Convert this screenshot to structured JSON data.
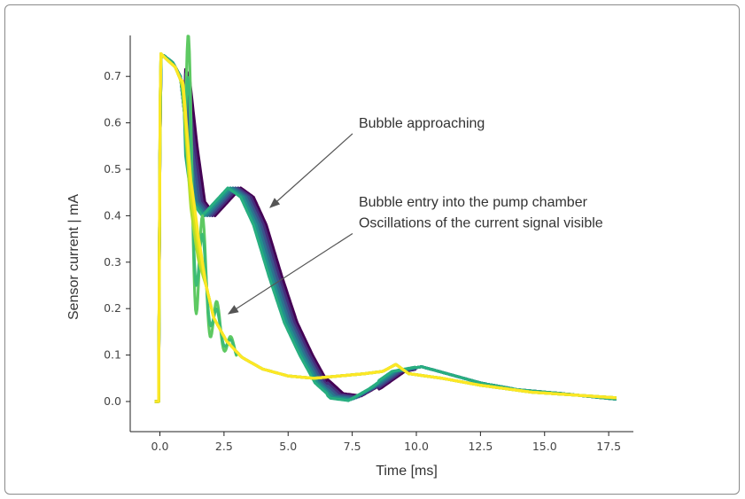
{
  "chart_data": {
    "type": "line",
    "xlabel": "Time [ms]",
    "ylabel": "Sensor current | mA",
    "xlim": [
      -1.6,
      18.6
    ],
    "ylim": [
      -0.06,
      0.82
    ],
    "xticks": [
      "0.0",
      "2.5",
      "5.0",
      "7.5",
      "10.0",
      "12.5",
      "15.0",
      "17.5"
    ],
    "yticks": [
      "0.0",
      "0.1",
      "0.2",
      "0.3",
      "0.4",
      "0.5",
      "0.6",
      "0.7"
    ],
    "annotations": [
      {
        "text": "Bubble approaching",
        "x": 4.3,
        "y": 0.59,
        "arrow_to": [
          4.3,
          0.41
        ]
      },
      {
        "text": "Bubble entry into the pump chamber",
        "x": 4.3,
        "y": 0.42
      },
      {
        "text": "Oscillations of the current signal visible",
        "x": 4.3,
        "y": 0.375,
        "arrow_to": [
          1.3,
          0.18
        ]
      }
    ],
    "series_approaching": [
      {
        "color": "#440154",
        "shift": 0.35
      },
      {
        "color": "#472d7b",
        "shift": 0.25
      },
      {
        "color": "#3b528b",
        "shift": 0.15
      },
      {
        "color": "#2c728e",
        "shift": 0.05
      },
      {
        "color": "#21918c",
        "shift": -0.05
      },
      {
        "color": "#28ae80",
        "shift": -0.15
      }
    ],
    "approaching_points": [
      [
        -0.2,
        0.0
      ],
      [
        -0.05,
        0.0
      ],
      [
        0.02,
        0.74
      ],
      [
        0.15,
        0.745
      ],
      [
        0.5,
        0.73
      ],
      [
        0.8,
        0.7
      ],
      [
        1.1,
        0.55
      ],
      [
        1.4,
        0.43
      ],
      [
        1.8,
        0.4
      ],
      [
        2.3,
        0.43
      ],
      [
        2.8,
        0.46
      ],
      [
        3.3,
        0.44
      ],
      [
        3.8,
        0.38
      ],
      [
        4.4,
        0.27
      ],
      [
        5.0,
        0.17
      ],
      [
        5.6,
        0.1
      ],
      [
        6.2,
        0.04
      ],
      [
        6.8,
        0.01
      ],
      [
        7.5,
        0.005
      ],
      [
        8.3,
        0.03
      ],
      [
        9.2,
        0.065
      ],
      [
        10.2,
        0.075
      ],
      [
        11.2,
        0.06
      ],
      [
        12.5,
        0.04
      ],
      [
        14.0,
        0.025
      ],
      [
        15.5,
        0.018
      ],
      [
        17.8,
        0.005
      ]
    ],
    "series_entry": [
      {
        "color": "#5ec962",
        "kind": "osc",
        "amp": 0.34
      },
      {
        "color": "#3dbc74",
        "kind": "osc",
        "amp": 0.22
      },
      {
        "color": "#addc30",
        "kind": "smooth"
      },
      {
        "color": "#d8e219",
        "kind": "smooth"
      },
      {
        "color": "#fde725",
        "kind": "smooth"
      }
    ],
    "entry_points": [
      [
        -0.2,
        0.0
      ],
      [
        -0.05,
        0.0
      ],
      [
        0.02,
        0.75
      ],
      [
        0.2,
        0.74
      ],
      [
        0.6,
        0.72
      ],
      [
        0.9,
        0.68
      ],
      [
        1.2,
        0.45
      ],
      [
        1.5,
        0.33
      ],
      [
        1.8,
        0.25
      ],
      [
        2.1,
        0.18
      ],
      [
        2.6,
        0.13
      ],
      [
        3.2,
        0.095
      ],
      [
        4.0,
        0.07
      ],
      [
        5.0,
        0.055
      ],
      [
        6.0,
        0.05
      ],
      [
        7.0,
        0.055
      ],
      [
        8.0,
        0.06
      ],
      [
        8.7,
        0.065
      ],
      [
        9.2,
        0.08
      ],
      [
        9.7,
        0.06
      ],
      [
        11.0,
        0.05
      ],
      [
        12.5,
        0.035
      ],
      [
        14.5,
        0.02
      ],
      [
        17.8,
        0.008
      ]
    ]
  }
}
